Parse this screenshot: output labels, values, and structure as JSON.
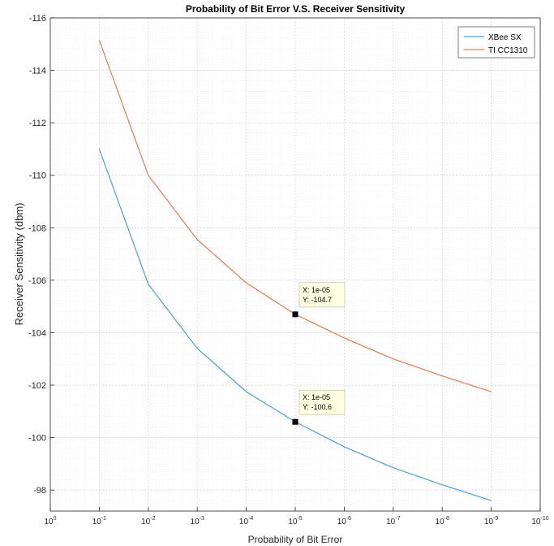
{
  "chart_data": {
    "type": "line",
    "title": "Probability of Bit Error V.S. Receiver Sensitivity",
    "xlabel": "Probability of Bit Error",
    "ylabel": "Receiver Sensitivity (dbm)",
    "x_scale": "log",
    "x_reversed": true,
    "y_reversed": true,
    "xlim": [
      1,
      1e-10
    ],
    "ylim": [
      -97.2,
      -116
    ],
    "grid": "major-and-minor",
    "legend_position": "top-right",
    "x_tick_labels": [
      {
        "base": "10",
        "exp": "0"
      },
      {
        "base": "10",
        "exp": "-1"
      },
      {
        "base": "10",
        "exp": "-2"
      },
      {
        "base": "10",
        "exp": "-3"
      },
      {
        "base": "10",
        "exp": "-4"
      },
      {
        "base": "10",
        "exp": "-5"
      },
      {
        "base": "10",
        "exp": "-6"
      },
      {
        "base": "10",
        "exp": "-7"
      },
      {
        "base": "10",
        "exp": "-8"
      },
      {
        "base": "10",
        "exp": "-9"
      },
      {
        "base": "10",
        "exp": "-10"
      }
    ],
    "y_ticks": [
      -116,
      -114,
      -112,
      -110,
      -108,
      -106,
      -104,
      -102,
      -100,
      -98
    ],
    "x": [
      0.1,
      0.01,
      0.001,
      0.0001,
      1e-05,
      1e-06,
      1e-07,
      1e-08,
      1e-09
    ],
    "series": [
      {
        "name": "XBee SX",
        "color": "#4a9fd8",
        "values": [
          -111.0,
          -105.85,
          -103.4,
          -101.75,
          -100.6,
          -99.65,
          -98.85,
          -98.2,
          -97.6
        ]
      },
      {
        "name": "TI CC1310",
        "color": "#e07a56",
        "values": [
          -115.15,
          -110.0,
          -107.55,
          -105.9,
          -104.7,
          -103.8,
          -103.0,
          -102.35,
          -101.75
        ]
      }
    ],
    "annotations": [
      {
        "x": 1e-05,
        "y": -104.7,
        "line1": "X: 1e-05",
        "line2": "Y: -104.7"
      },
      {
        "x": 1e-05,
        "y": -100.6,
        "line1": "X: 1e-05",
        "line2": "Y: -100.6"
      }
    ]
  }
}
